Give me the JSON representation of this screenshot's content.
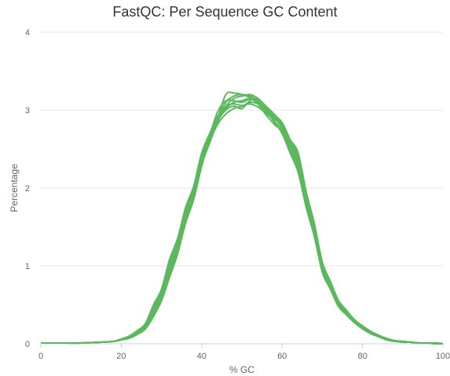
{
  "chart_data": {
    "type": "line",
    "title": "FastQC: Per Sequence GC Content",
    "xlabel": "% GC",
    "ylabel": "Percentage",
    "xlim": [
      0,
      100
    ],
    "ylim": [
      0,
      4
    ],
    "x_ticks": [
      "0",
      "20",
      "40",
      "60",
      "80",
      "100"
    ],
    "y_ticks": [
      "0",
      "1",
      "2",
      "3",
      "4"
    ],
    "grid": true,
    "legend": "none",
    "line_color": "#5cb85c",
    "x": [
      0,
      5,
      10,
      15,
      18,
      20,
      22,
      24,
      26,
      28,
      30,
      32,
      34,
      36,
      38,
      40,
      42,
      44,
      46,
      48,
      50,
      52,
      54,
      56,
      58,
      60,
      62,
      64,
      66,
      68,
      70,
      72,
      74,
      76,
      78,
      80,
      82,
      84,
      86,
      88,
      90,
      92,
      94,
      96,
      98,
      100
    ],
    "series": [
      {
        "values": [
          0.01,
          0.01,
          0.01,
          0.02,
          0.03,
          0.05,
          0.08,
          0.14,
          0.22,
          0.4,
          0.62,
          0.95,
          1.25,
          1.65,
          1.95,
          2.35,
          2.6,
          2.82,
          2.95,
          3.02,
          3.05,
          3.1,
          3.08,
          3.0,
          2.9,
          2.78,
          2.55,
          2.3,
          1.8,
          1.4,
          0.95,
          0.72,
          0.5,
          0.38,
          0.28,
          0.2,
          0.14,
          0.1,
          0.06,
          0.04,
          0.03,
          0.02,
          0.01,
          0.01,
          0.01,
          0.0
        ]
      },
      {
        "values": [
          0.01,
          0.01,
          0.01,
          0.02,
          0.03,
          0.06,
          0.09,
          0.15,
          0.24,
          0.45,
          0.65,
          1.0,
          1.3,
          1.7,
          2.0,
          2.4,
          2.65,
          2.88,
          3.02,
          3.1,
          3.12,
          3.15,
          3.1,
          3.02,
          2.92,
          2.8,
          2.58,
          2.35,
          1.85,
          1.45,
          1.0,
          0.75,
          0.52,
          0.4,
          0.3,
          0.21,
          0.15,
          0.1,
          0.06,
          0.04,
          0.03,
          0.02,
          0.01,
          0.01,
          0.01,
          0.0
        ]
      },
      {
        "values": [
          0.01,
          0.01,
          0.01,
          0.02,
          0.03,
          0.05,
          0.08,
          0.13,
          0.2,
          0.38,
          0.58,
          0.9,
          1.2,
          1.6,
          1.9,
          2.3,
          2.58,
          2.85,
          3.05,
          3.15,
          3.18,
          3.2,
          3.15,
          3.05,
          2.95,
          2.82,
          2.6,
          2.4,
          1.9,
          1.5,
          1.02,
          0.78,
          0.55,
          0.42,
          0.3,
          0.22,
          0.15,
          0.1,
          0.06,
          0.04,
          0.03,
          0.02,
          0.01,
          0.01,
          0.01,
          0.0
        ]
      },
      {
        "values": [
          0.01,
          0.01,
          0.01,
          0.02,
          0.03,
          0.05,
          0.07,
          0.12,
          0.19,
          0.35,
          0.55,
          0.85,
          1.15,
          1.55,
          1.85,
          2.28,
          2.62,
          2.9,
          3.1,
          3.18,
          3.2,
          3.18,
          3.12,
          3.0,
          2.85,
          2.7,
          2.45,
          2.2,
          1.75,
          1.38,
          0.92,
          0.7,
          0.48,
          0.37,
          0.27,
          0.19,
          0.13,
          0.09,
          0.05,
          0.03,
          0.02,
          0.02,
          0.01,
          0.01,
          0.0,
          0.0
        ]
      },
      {
        "values": [
          0.01,
          0.01,
          0.01,
          0.02,
          0.03,
          0.06,
          0.1,
          0.17,
          0.26,
          0.5,
          0.7,
          1.08,
          1.35,
          1.75,
          2.02,
          2.45,
          2.7,
          2.92,
          3.05,
          3.08,
          3.06,
          3.08,
          3.04,
          2.96,
          2.88,
          2.82,
          2.62,
          2.45,
          1.95,
          1.55,
          1.05,
          0.8,
          0.56,
          0.43,
          0.31,
          0.23,
          0.16,
          0.11,
          0.07,
          0.04,
          0.03,
          0.02,
          0.01,
          0.01,
          0.01,
          0.0
        ]
      },
      {
        "values": [
          0.01,
          0.01,
          0.01,
          0.02,
          0.03,
          0.05,
          0.08,
          0.14,
          0.23,
          0.42,
          0.63,
          0.98,
          1.28,
          1.68,
          1.98,
          2.38,
          2.68,
          2.98,
          3.12,
          3.12,
          3.1,
          3.14,
          3.1,
          2.98,
          2.86,
          2.75,
          2.5,
          2.28,
          1.8,
          1.42,
          0.98,
          0.74,
          0.51,
          0.39,
          0.29,
          0.21,
          0.14,
          0.1,
          0.06,
          0.04,
          0.03,
          0.02,
          0.01,
          0.01,
          0.01,
          0.0
        ]
      },
      {
        "values": [
          0.01,
          0.01,
          0.01,
          0.02,
          0.03,
          0.05,
          0.08,
          0.13,
          0.21,
          0.4,
          0.6,
          0.92,
          1.22,
          1.62,
          1.92,
          2.32,
          2.6,
          2.86,
          3.0,
          3.05,
          3.02,
          3.12,
          3.14,
          3.04,
          2.94,
          2.84,
          2.62,
          2.4,
          1.88,
          1.48,
          1.0,
          0.76,
          0.53,
          0.4,
          0.29,
          0.21,
          0.15,
          0.1,
          0.06,
          0.04,
          0.03,
          0.02,
          0.01,
          0.01,
          0.01,
          0.0
        ]
      },
      {
        "values": [
          0.01,
          0.01,
          0.01,
          0.02,
          0.03,
          0.05,
          0.09,
          0.15,
          0.25,
          0.46,
          0.68,
          1.05,
          1.32,
          1.72,
          2.0,
          2.42,
          2.66,
          2.9,
          3.2,
          3.22,
          3.2,
          3.16,
          3.08,
          2.94,
          2.82,
          2.72,
          2.48,
          2.25,
          1.78,
          1.4,
          0.96,
          0.73,
          0.5,
          0.38,
          0.28,
          0.2,
          0.14,
          0.09,
          0.05,
          0.04,
          0.02,
          0.02,
          0.01,
          0.01,
          0.0,
          0.0
        ]
      }
    ]
  }
}
